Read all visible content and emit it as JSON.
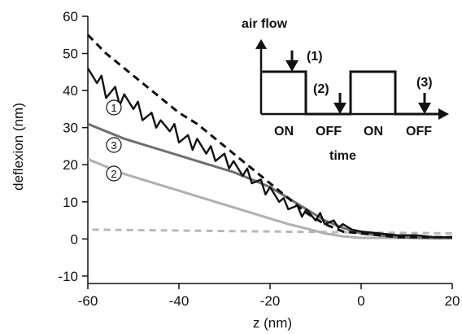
{
  "chart_data": {
    "type": "line",
    "xlabel": "z (nm)",
    "ylabel": "deflexion (nm)",
    "xlim": [
      -60,
      20
    ],
    "ylim": [
      -12,
      60
    ],
    "xticks": [
      -60,
      -40,
      -20,
      0,
      20
    ],
    "yticks": [
      -10,
      0,
      10,
      20,
      30,
      40,
      50,
      60
    ],
    "grid": false,
    "series": [
      {
        "name": "black dashed",
        "style": "dashed",
        "color": "#111111",
        "x": [
          -60,
          -56,
          -52,
          -48,
          -44,
          -40,
          -36,
          -32,
          -28,
          -24,
          -20,
          -16,
          -12,
          -8,
          -4,
          0,
          4,
          8,
          12,
          16,
          20
        ],
        "y": [
          55,
          50,
          46,
          42,
          38,
          34,
          31,
          27,
          23,
          19,
          15,
          11,
          7,
          4,
          2,
          1.5,
          1,
          0.5,
          0.5,
          0.5,
          0.5
        ]
      },
      {
        "name": "1",
        "style": "solid",
        "color": "#111111",
        "x": [
          -60,
          -58,
          -57,
          -56,
          -54,
          -53,
          -52,
          -50,
          -49,
          -48,
          -46,
          -45,
          -44,
          -42,
          -41,
          -40,
          -38,
          -37,
          -36,
          -34,
          -33,
          -32,
          -30,
          -29,
          -28,
          -26,
          -25,
          -24,
          -22,
          -21,
          -20,
          -18,
          -17,
          -16,
          -14,
          -13,
          -12,
          -10,
          -9,
          -8,
          -6,
          -5,
          -4,
          -2,
          0,
          4,
          8,
          12,
          16,
          20
        ],
        "y": [
          46,
          42,
          44,
          38,
          41,
          36,
          39,
          35,
          37,
          32,
          34,
          30,
          32,
          29,
          31,
          26,
          28,
          24,
          27,
          23,
          25,
          21,
          23,
          19,
          21,
          17,
          19,
          15,
          16,
          12,
          14,
          10,
          11,
          8,
          9,
          6,
          8,
          5,
          7,
          4,
          5,
          3,
          4,
          2.5,
          2,
          1.5,
          1,
          1,
          0.5,
          0.5
        ]
      },
      {
        "name": "3",
        "style": "solid",
        "color": "#6e6e6e",
        "x": [
          -60,
          -56,
          -52,
          -48,
          -44,
          -40,
          -36,
          -32,
          -28,
          -24,
          -20,
          -16,
          -12,
          -8,
          -4,
          0,
          4,
          8,
          12,
          16,
          20
        ],
        "y": [
          31,
          29,
          27,
          25.5,
          24,
          22.5,
          21,
          19.5,
          18,
          16,
          14,
          11,
          8,
          5,
          3,
          1.5,
          1,
          0.5,
          0.3,
          0.2,
          0.2
        ]
      },
      {
        "name": "2",
        "style": "solid",
        "color": "#b0b0b0",
        "x": [
          -60,
          -56,
          -52,
          -48,
          -44,
          -40,
          -36,
          -32,
          -28,
          -24,
          -20,
          -16,
          -12,
          -8,
          -4,
          0,
          4,
          8,
          12,
          16,
          20
        ],
        "y": [
          21.5,
          19.5,
          17.5,
          16,
          14.5,
          13,
          11.5,
          10,
          8.5,
          7,
          5.5,
          4,
          2.8,
          1.5,
          0.7,
          0.3,
          0.3,
          0.3,
          0.3,
          0.3,
          0.3
        ]
      },
      {
        "name": "gray dashed baseline",
        "style": "dashed",
        "color": "#b8b8b8",
        "x": [
          -59,
          20
        ],
        "y": [
          2.5,
          1.5
        ]
      }
    ],
    "curve_labels": [
      "1",
      "3",
      "2"
    ]
  },
  "inset": {
    "ylabel": "air flow",
    "xlabel": "time",
    "state_labels": [
      "ON",
      "OFF",
      "ON",
      "OFF"
    ],
    "marker_labels": [
      "(1)",
      "(2)",
      "(3)"
    ]
  }
}
